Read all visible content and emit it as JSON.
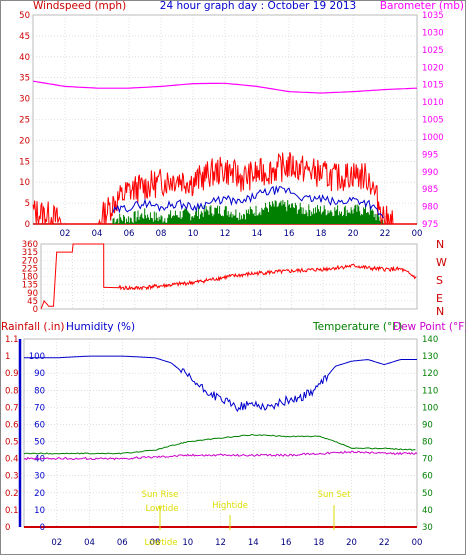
{
  "header": {
    "left_label": "Windspeed (mph)",
    "title": "24 hour graph day : October 19 2013",
    "right_label": "Barometer (mb)"
  },
  "colors": {
    "wind": "#ff0000",
    "baro": "#ff00ff",
    "avg_wind": "#0000cc",
    "gust_bars": "#008000",
    "humidity": "#0000cc",
    "temperature": "#008000",
    "dewpoint": "#cc00cc",
    "axis_red": "#cc0000",
    "axis_green": "#008000",
    "axis_blue": "#0000cc",
    "annotation": "#dddd00"
  },
  "bottom_header": {
    "rainfall_label": "Rainfall (.in)",
    "humidity_label": "Humidity (%)",
    "temperature_label": "Temperature (°F)",
    "dewpoint_label": "Dew Point (°F)"
  },
  "annotations": {
    "sunrise": "Sun Rise",
    "lowtide_upper": "Lowtide",
    "lowtide_lower": "Lowtide",
    "hightide": "Hightide",
    "sunset": "Sun Set"
  },
  "chart_data": [
    {
      "type": "line",
      "panel": "wind",
      "xlabel": "",
      "x_ticks": [
        "02",
        "04",
        "06",
        "08",
        "10",
        "12",
        "14",
        "16",
        "18",
        "20",
        "22",
        "00"
      ],
      "ylim": [
        0,
        50
      ],
      "y_ticks_left": [
        0,
        5,
        10,
        15,
        20,
        25,
        30,
        35,
        40,
        45,
        50
      ],
      "ylim_right": [
        975,
        1035
      ],
      "y_ticks_right": [
        975,
        980,
        985,
        990,
        995,
        1000,
        1005,
        1010,
        1015,
        1020,
        1025,
        1030,
        1035
      ],
      "grid": true,
      "series": [
        {
          "name": "Windspeed (mph)",
          "axis": "left",
          "x": [
            0,
            1,
            2,
            3,
            4,
            5,
            6,
            7,
            8,
            9,
            10,
            11,
            12,
            13,
            14,
            15,
            16,
            17,
            18,
            19,
            20,
            21,
            22,
            23,
            24
          ],
          "values": [
            3,
            2,
            0,
            0,
            0,
            5,
            8,
            9,
            10,
            11,
            10,
            12,
            13,
            11,
            12,
            13,
            14,
            13,
            12,
            11,
            12,
            11,
            1,
            0,
            0
          ]
        },
        {
          "name": "Barometer (mb)",
          "axis": "right",
          "x": [
            0,
            2,
            4,
            6,
            8,
            10,
            12,
            14,
            16,
            18,
            20,
            22,
            24
          ],
          "values": [
            1016,
            1014.5,
            1014,
            1014,
            1014.5,
            1015.3,
            1015.4,
            1014.5,
            1013,
            1012.6,
            1013,
            1013.6,
            1014
          ]
        },
        {
          "name": "",
          "axis": "left",
          "x": [
            5,
            6,
            7,
            8,
            9,
            10,
            11,
            12,
            13,
            14,
            15,
            16,
            17,
            18,
            19,
            20,
            21,
            22
          ],
          "values": [
            3,
            4,
            5,
            4,
            5,
            4,
            5,
            6,
            5,
            7,
            8,
            8,
            6,
            6,
            5,
            6,
            5,
            1
          ]
        },
        {
          "name": "",
          "axis": "left",
          "x": [
            5,
            6,
            7,
            8,
            9,
            10,
            11,
            12,
            13,
            14,
            15,
            16,
            17,
            18,
            19,
            20,
            21,
            22
          ],
          "values": [
            1,
            1,
            2,
            1,
            2,
            2,
            3,
            3,
            2,
            3,
            4,
            4,
            3,
            3,
            3,
            3,
            3,
            0
          ]
        }
      ]
    },
    {
      "type": "line",
      "panel": "direction",
      "y_ticks": [
        0,
        45,
        90,
        135,
        180,
        225,
        270,
        315,
        360
      ],
      "ylim": [
        0,
        360
      ],
      "y_ticks_right": [
        "N",
        "W",
        "S",
        "E",
        "N"
      ],
      "grid": true,
      "series": [
        {
          "name": "",
          "x": [
            0,
            0.2,
            0.5,
            0.8,
            1,
            2,
            2.05,
            4,
            4,
            5,
            6,
            8,
            10,
            12,
            14,
            16,
            18,
            20,
            21,
            22,
            23,
            24
          ],
          "values": [
            0,
            45,
            15,
            15,
            315,
            315,
            360,
            360,
            120,
            118,
            115,
            130,
            150,
            180,
            200,
            210,
            220,
            240,
            225,
            220,
            220,
            170
          ]
        }
      ]
    },
    {
      "type": "line",
      "panel": "humidity_temperature",
      "x_ticks": [
        "02",
        "04",
        "06",
        "08",
        "10",
        "12",
        "14",
        "16",
        "18",
        "20",
        "22",
        "00"
      ],
      "ylim": [
        0,
        110
      ],
      "y_ticks_left": [
        0,
        0.1,
        0.2,
        0.3,
        0.4,
        0.5,
        0.6,
        0.7,
        0.8,
        0.9,
        1,
        1.1
      ],
      "y_ticks_humidity": [
        0,
        10,
        20,
        30,
        40,
        50,
        60,
        70,
        80,
        90,
        100
      ],
      "ylim_right": [
        30,
        140
      ],
      "y_ticks_right": [
        30,
        40,
        50,
        60,
        70,
        80,
        90,
        100,
        110,
        120,
        130,
        140
      ],
      "grid": true,
      "series": [
        {
          "name": "Humidity (%)",
          "x": [
            0,
            2,
            4,
            6,
            8,
            9,
            10,
            11,
            12,
            13,
            14,
            15,
            16,
            17,
            18,
            19,
            20,
            21,
            22,
            23,
            24
          ],
          "values": [
            99,
            99,
            100,
            100,
            99,
            96,
            88,
            80,
            75,
            70,
            72,
            70,
            74,
            76,
            82,
            94,
            97,
            98,
            95,
            98,
            98
          ]
        },
        {
          "name": "Temperature (°F)",
          "x": [
            0,
            2,
            4,
            6,
            8,
            10,
            12,
            14,
            16,
            18,
            19,
            20,
            22,
            24
          ],
          "values": [
            73,
            73,
            73,
            73,
            75,
            80,
            82,
            84,
            83,
            83,
            80,
            76,
            76,
            75
          ]
        },
        {
          "name": "Dew Point (°F)",
          "x": [
            0,
            2,
            4,
            6,
            8,
            10,
            12,
            14,
            16,
            18,
            20,
            22,
            24
          ],
          "values": [
            70,
            70,
            70,
            70,
            71,
            72,
            72,
            72,
            72,
            73,
            74,
            73,
            73
          ]
        },
        {
          "name": "Rainfall (.in)",
          "x": [
            0,
            24
          ],
          "values": [
            0,
            0
          ]
        }
      ]
    }
  ]
}
